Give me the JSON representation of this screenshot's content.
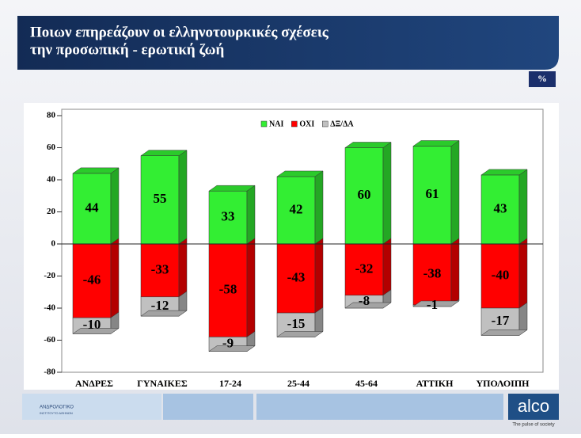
{
  "chart_data": {
    "type": "bar",
    "stacked": true,
    "three_d": true,
    "title": "Ποιων επηρεάζουν οι ελληνοτουρκικές σχέσεις",
    "subtitle": "την προσωπική - ερωτική ζωή",
    "unit_label": "%",
    "categories": [
      "ΑΝΔΡΕΣ",
      "ΓΥΝΑΙΚΕΣ",
      "17-24",
      "25-44",
      "45-64",
      "ΑΤΤΙΚΗ",
      "ΥΠΟΛΟΙΠΗ"
    ],
    "series": [
      {
        "name": "ΝΑΙ",
        "color": "#33ee33",
        "values": [
          44,
          55,
          33,
          42,
          60,
          61,
          43
        ]
      },
      {
        "name": "ΟΧΙ",
        "color": "#ff0000",
        "values": [
          -46,
          -33,
          -58,
          -43,
          -32,
          -38,
          -40
        ]
      },
      {
        "name": "ΔΞ/ΔΑ",
        "color": "#c0c0c0",
        "values": [
          -10,
          -12,
          -9,
          -15,
          -8,
          -1,
          -17
        ]
      }
    ],
    "ylim": [
      -80,
      80
    ],
    "yticks": [
      -80,
      -60,
      -40,
      -20,
      0,
      20,
      40,
      60,
      80
    ],
    "legend": "top"
  },
  "footer": {
    "institute": [
      "ΑΝΔΡΟΛΟΓΙΚΟ",
      "ΙΝΣΤΙΤΟΥΤΟ ΑΘΗΝΩΝ"
    ],
    "brand": "alco",
    "tagline": "The pulse of society"
  }
}
